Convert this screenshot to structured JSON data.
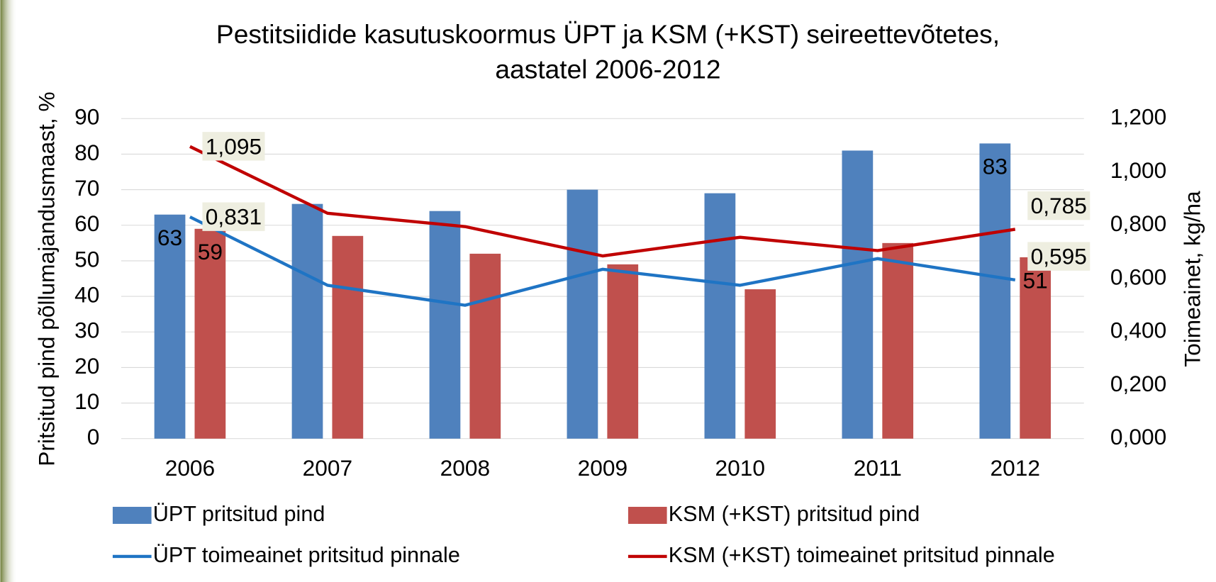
{
  "chart_data": {
    "type": "bar-line",
    "title": [
      "Pestitsiidide kasutuskoormus ÜPT ja KSM (+KST) seireettevõtetes,",
      "aastatel 2006-2012"
    ],
    "y_label": "Pritsitud pind põllumajandusmaast, %",
    "y2_label": "Toimeainet,  kg/ha",
    "categories": [
      "2006",
      "2007",
      "2008",
      "2009",
      "2010",
      "2011",
      "2012"
    ],
    "series": [
      {
        "name": "ÜPT pritsitud pind",
        "type": "bar",
        "color": "#4f81bd",
        "values": [
          63,
          66,
          64,
          70,
          69,
          81,
          83
        ],
        "value_labels": [
          "63",
          null,
          null,
          null,
          null,
          null,
          "83"
        ]
      },
      {
        "name": "KSM (+KST) pritsitud pind",
        "type": "bar",
        "color": "#c0504d",
        "values": [
          59,
          57,
          52,
          49,
          42,
          55,
          51
        ],
        "value_labels": [
          "59",
          null,
          null,
          null,
          null,
          null,
          "51"
        ]
      },
      {
        "name": "ÜPT toimeainet pritsitud pinnale",
        "type": "line",
        "axis": "y2",
        "color": "#1f74c4",
        "values": [
          0.831,
          0.575,
          0.5,
          0.635,
          0.575,
          0.675,
          0.595
        ],
        "value_labels": [
          "0,831",
          null,
          null,
          null,
          null,
          null,
          "0,595"
        ]
      },
      {
        "name": "KSM (+KST) toimeainet pritsitud pinnale",
        "type": "line",
        "axis": "y2",
        "color": "#c00000",
        "values": [
          1.095,
          0.845,
          0.795,
          0.685,
          0.755,
          0.705,
          0.785
        ],
        "value_labels": [
          "1,095",
          null,
          null,
          null,
          null,
          null,
          "0,785"
        ]
      }
    ],
    "ylim": [
      0,
      90
    ],
    "yticks": [
      0,
      10,
      20,
      30,
      40,
      50,
      60,
      70,
      80,
      90
    ],
    "y2lim": [
      0,
      1.2
    ],
    "y2ticks": [
      {
        "value": 0,
        "label": "0,000"
      },
      {
        "value": 0.2,
        "label": "0,200"
      },
      {
        "value": 0.4,
        "label": "0,400"
      },
      {
        "value": 0.6,
        "label": "0,600"
      },
      {
        "value": 0.8,
        "label": "0,800"
      },
      {
        "value": 1.0,
        "label": "1,000"
      },
      {
        "value": 1.2,
        "label": "1,200"
      }
    ],
    "grid": true
  }
}
